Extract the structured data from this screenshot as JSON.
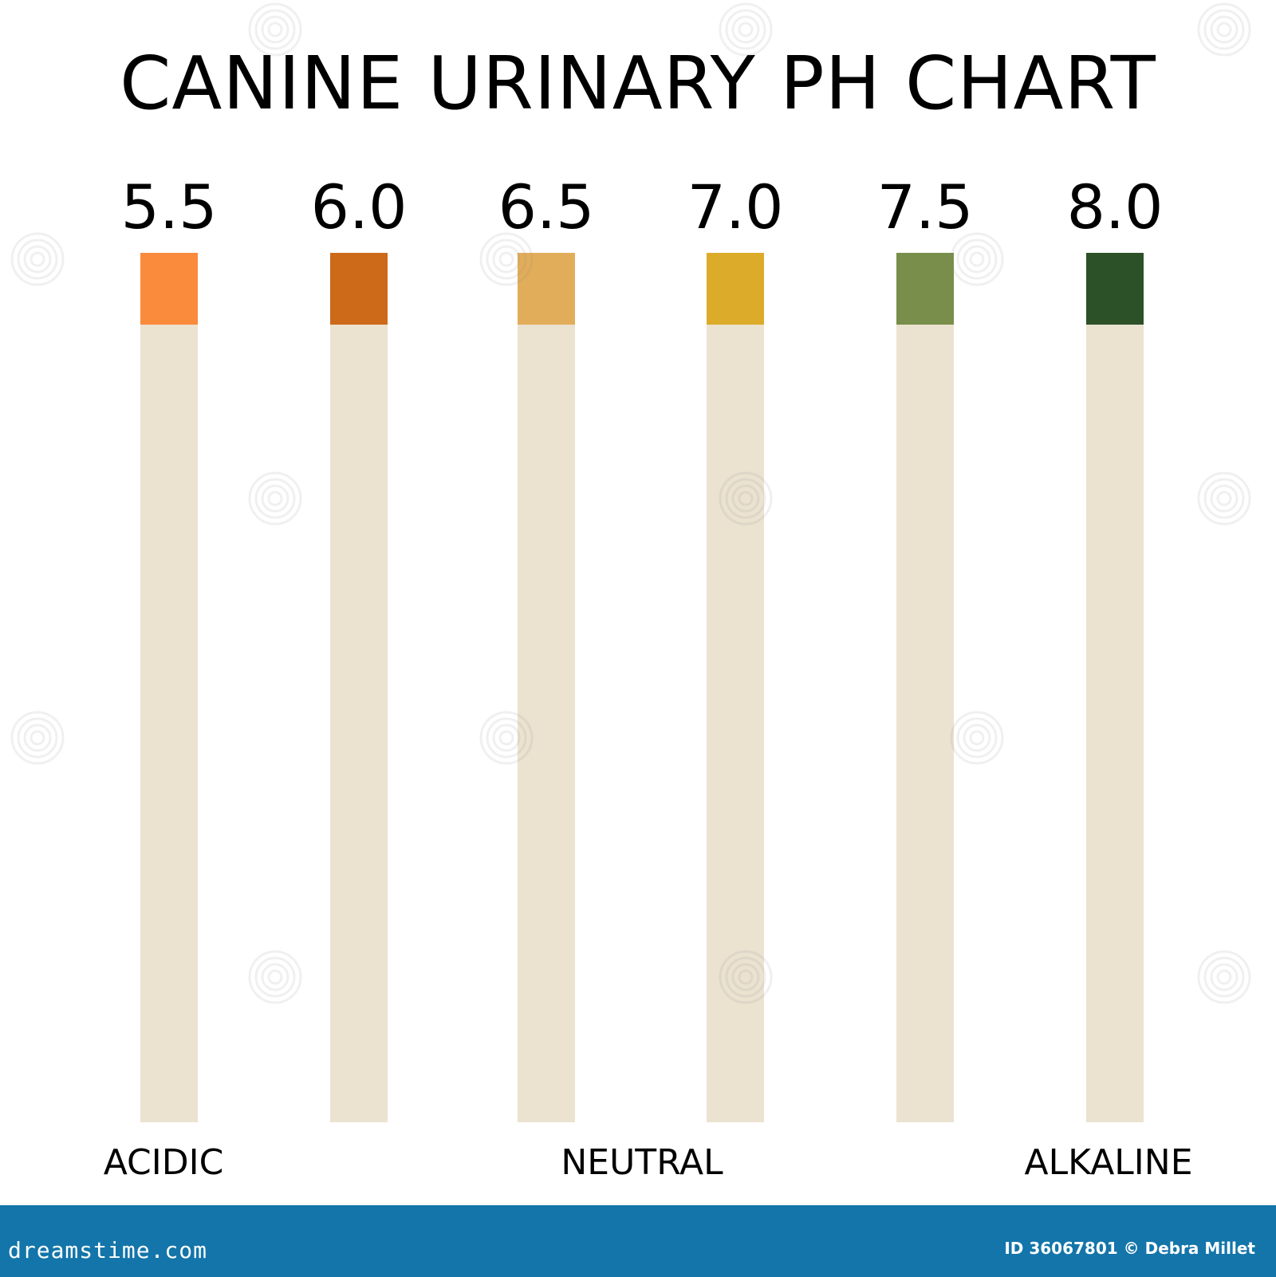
{
  "chart_data": {
    "type": "table",
    "title": "CANINE URINARY PH CHART",
    "strips": [
      {
        "ph": "5.5",
        "color": "#fa8a3c"
      },
      {
        "ph": "6.0",
        "color": "#cc6a1a"
      },
      {
        "ph": "6.5",
        "color": "#e2ad5a"
      },
      {
        "ph": "7.0",
        "color": "#dcab2a"
      },
      {
        "ph": "7.5",
        "color": "#788e4a"
      },
      {
        "ph": "8.0",
        "color": "#2c5128"
      }
    ],
    "scale": {
      "left": "ACIDIC",
      "middle": "NEUTRAL",
      "right": "ALKALINE"
    },
    "strip_base_color": "#ebe2d0"
  },
  "footer": {
    "brand": "dreamstime.com",
    "credit": "ID 36067801 © Debra Millet",
    "background": "#1375aa"
  },
  "watermark": {
    "icon": "spiral-watermark-icon"
  }
}
